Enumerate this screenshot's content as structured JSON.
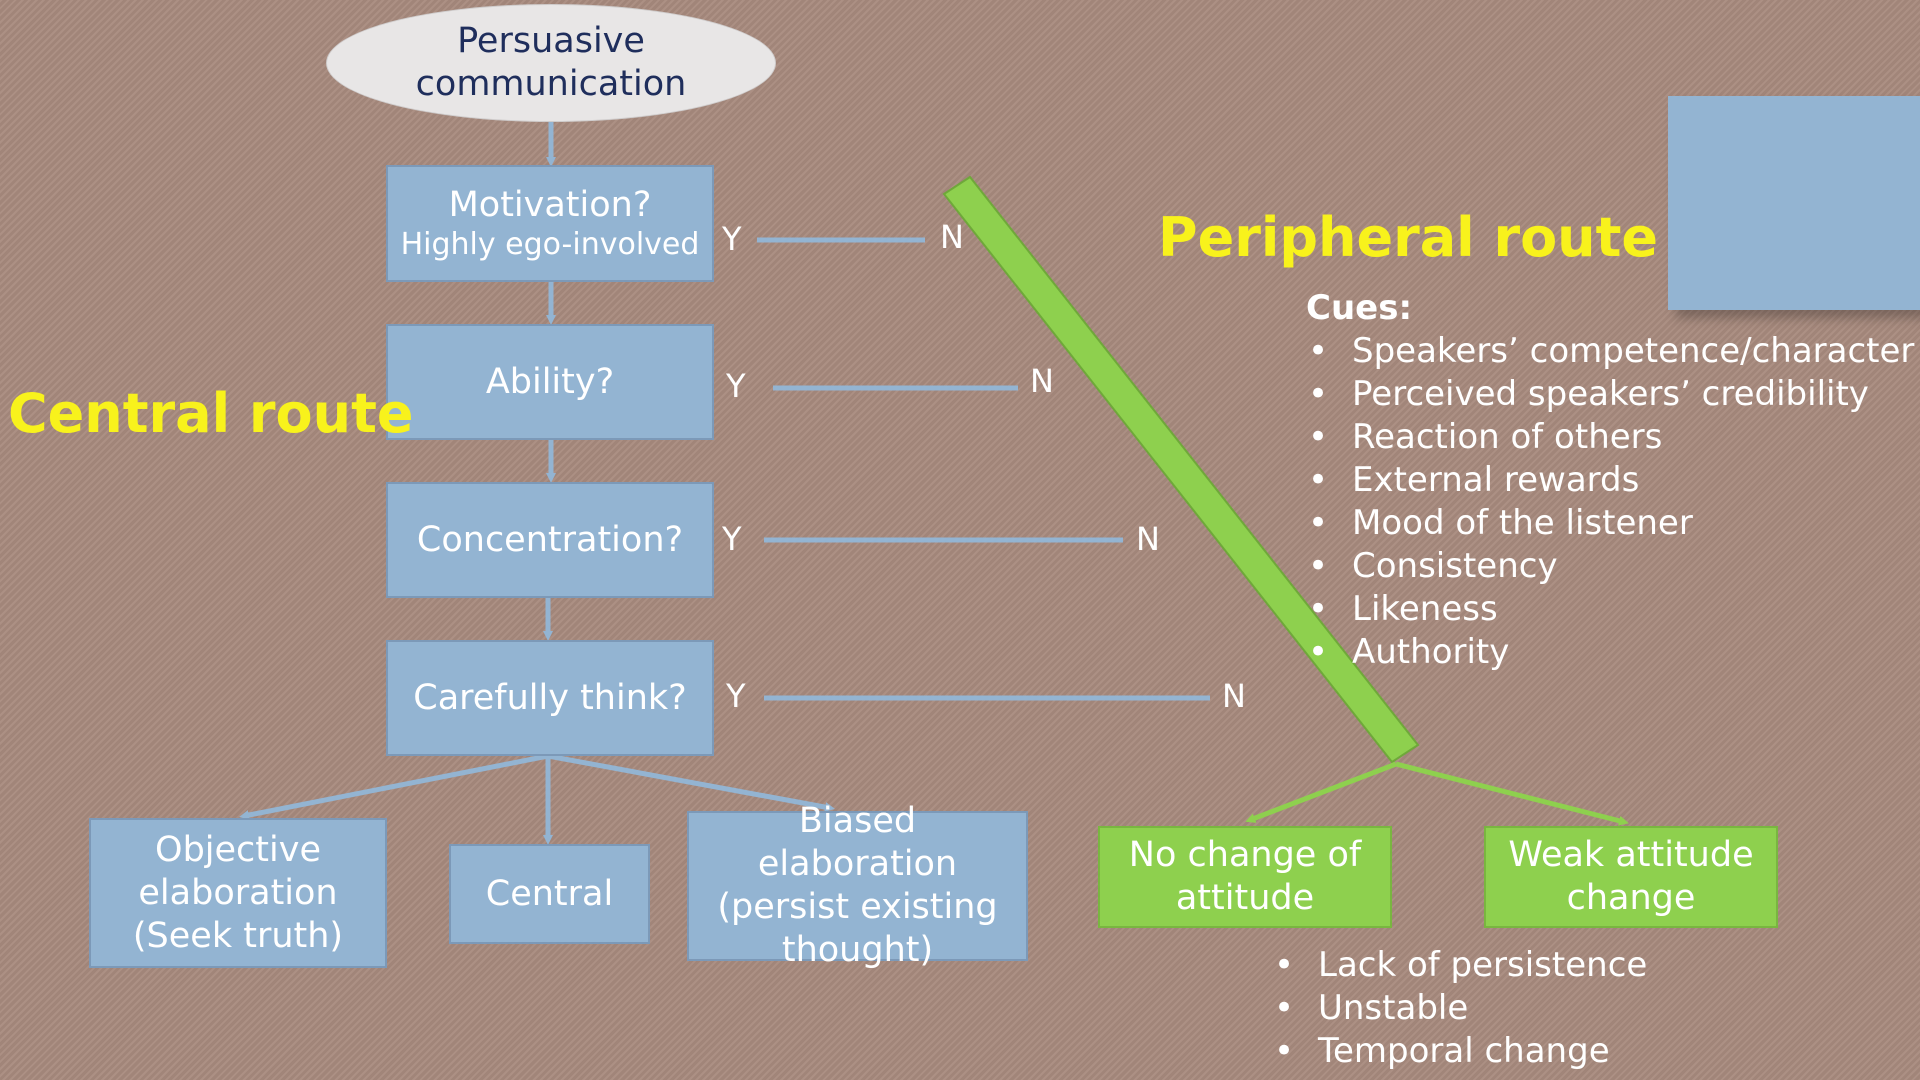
{
  "persuasive_communication": "Persuasive communication",
  "decisions": {
    "motivation": {
      "title": "Motivation?",
      "subtitle": "Highly ego-involved"
    },
    "ability": "Ability?",
    "concentration": "Concentration?",
    "carefully_think": "Carefully think?"
  },
  "yes_label": "Y",
  "no_label": "N",
  "central_route_label": "Central route",
  "peripheral_route_label": "Peripheral route",
  "central_outcomes": {
    "objective": "Objective elaboration (Seek truth)",
    "central": "Central",
    "biased": "Biased elaboration (persist existing thought)"
  },
  "peripheral_outcomes": {
    "no_change": "No change of attitude",
    "weak_change": "Weak attitude change"
  },
  "cues": {
    "heading": "Cues:",
    "items": [
      "Speakers’ competence/character",
      "Perceived speakers’ credibility",
      "Reaction of others",
      "External rewards",
      "Mood of the listener",
      "Consistency",
      "Likeness",
      "Authority"
    ]
  },
  "weak_change_effects": [
    "Lack of persistence",
    "Unstable",
    "Temporal change"
  ],
  "colors": {
    "background": "#a78a7d",
    "box_blue": "#93b4d2",
    "box_green": "#8ed04e",
    "route_label_yellow": "#f8f21c",
    "connector_blue": "#93b4d2",
    "connector_green": "#8ed04e"
  }
}
